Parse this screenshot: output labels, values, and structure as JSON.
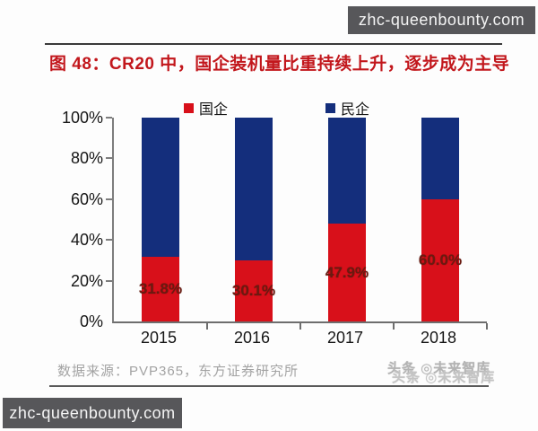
{
  "watermarks": {
    "site_top": "zhc-queenbounty.com",
    "site_bottom": "zhc-queenbounty.com",
    "ghost": "头条 ◎未来智库"
  },
  "figure": {
    "title": "图 48：CR20 中，国企装机量比重持续上升，逐步成为主导",
    "source": "数据来源：PVP365，东方证券研究所"
  },
  "chart_data": {
    "type": "bar",
    "stacked": true,
    "title": "CR20 中，国企装机量比重持续上升，逐步成为主导",
    "categories": [
      "2015",
      "2016",
      "2017",
      "2018"
    ],
    "series": [
      {
        "name": "国企",
        "color": "#d8101a",
        "values": [
          31.8,
          30.1,
          47.9,
          60.0
        ],
        "labels": [
          "31.8%",
          "30.1%",
          "47.9%",
          "60.0%"
        ]
      },
      {
        "name": "民企",
        "color": "#142e7c",
        "values": [
          68.2,
          69.9,
          52.1,
          40.0
        ]
      }
    ],
    "y_ticks": [
      "0%",
      "20%",
      "40%",
      "60%",
      "80%",
      "100%"
    ],
    "ylim": [
      0,
      100
    ],
    "grid": false,
    "legend_position": "top",
    "label_color": "#6b1a10",
    "xlabel": "",
    "ylabel": ""
  }
}
